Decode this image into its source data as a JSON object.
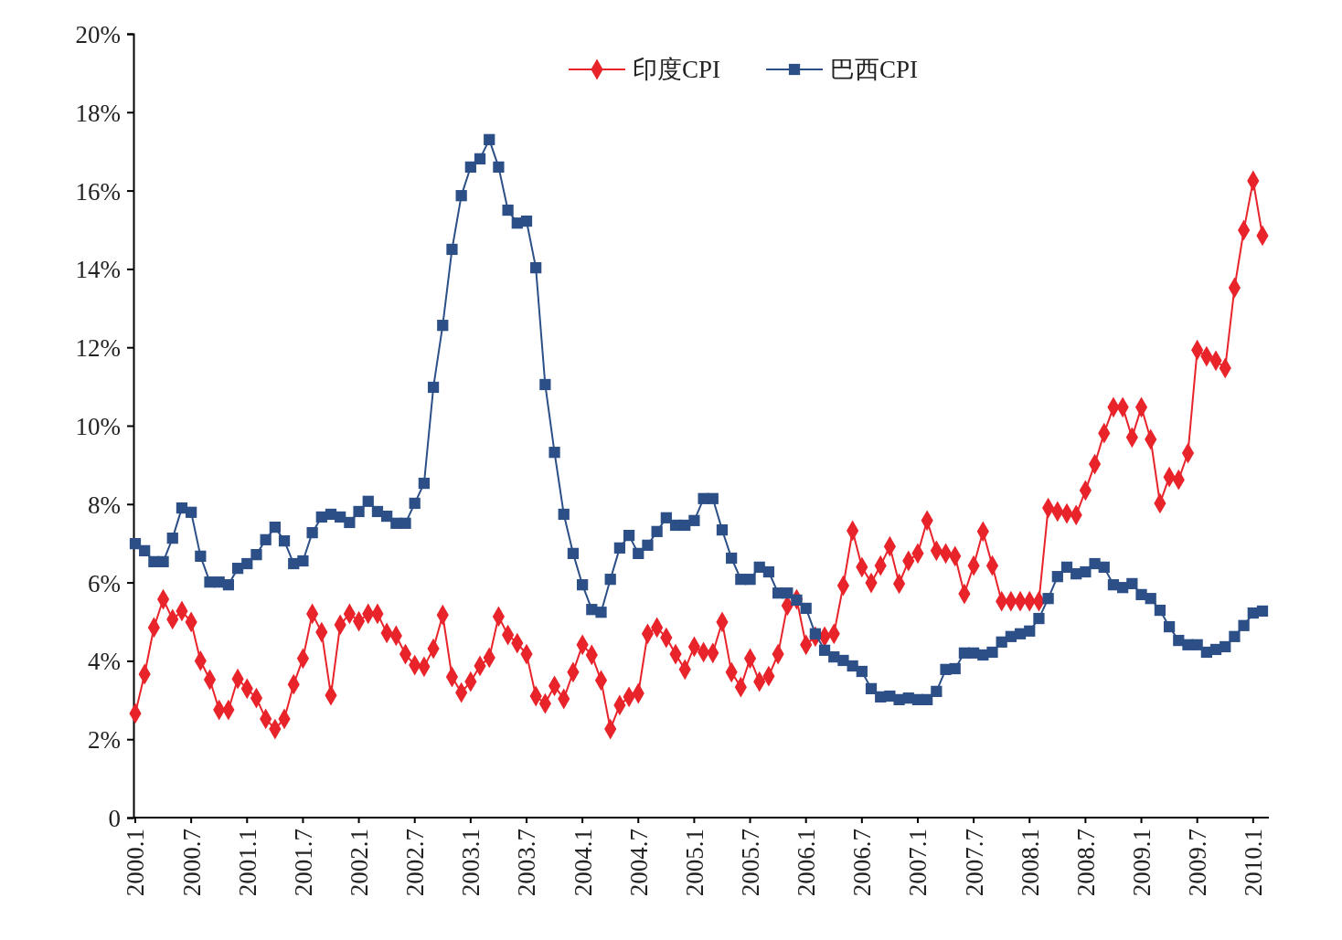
{
  "chart_data": {
    "type": "line",
    "categories": [
      "2000.1",
      null,
      null,
      null,
      null,
      null,
      "2000.7",
      null,
      null,
      null,
      null,
      null,
      "2001.1",
      null,
      null,
      null,
      null,
      null,
      "2001.7",
      null,
      null,
      null,
      null,
      null,
      "2002.1",
      null,
      null,
      null,
      null,
      null,
      "2002.7",
      null,
      null,
      null,
      null,
      null,
      "2003.1",
      null,
      null,
      null,
      null,
      null,
      "2003.7",
      null,
      null,
      null,
      null,
      null,
      "2004.1",
      null,
      null,
      null,
      null,
      null,
      "2004.7",
      null,
      null,
      null,
      null,
      null,
      "2005.1",
      null,
      null,
      null,
      null,
      null,
      "2005.7",
      null,
      null,
      null,
      null,
      null,
      "2006.1",
      null,
      null,
      null,
      null,
      null,
      "2006.7",
      null,
      null,
      null,
      null,
      null,
      "2007.1",
      null,
      null,
      null,
      null,
      null,
      "2007.7",
      null,
      null,
      null,
      null,
      null,
      "2008.1",
      null,
      null,
      null,
      null,
      null,
      "2008.7",
      null,
      null,
      null,
      null,
      null,
      "2009.1",
      null,
      null,
      null,
      null,
      null,
      "2009.7",
      null,
      null,
      null,
      null,
      null,
      "2010.1",
      null
    ],
    "series": [
      {
        "name": "印度CPI",
        "color": "#e8232a",
        "marker": "diamond",
        "values": [
          2.66,
          3.66,
          4.85,
          5.57,
          5.06,
          5.27,
          4.99,
          4.0,
          3.52,
          2.75,
          2.75,
          3.54,
          3.29,
          3.05,
          2.52,
          2.26,
          2.52,
          3.4,
          4.06,
          5.2,
          4.73,
          3.12,
          4.92,
          5.2,
          5.01,
          5.2,
          5.2,
          4.71,
          4.64,
          4.17,
          3.89,
          3.85,
          4.31,
          5.17,
          3.59,
          3.19,
          3.47,
          3.87,
          4.08,
          5.13,
          4.66,
          4.45,
          4.17,
          3.1,
          2.91,
          3.36,
          3.03,
          3.71,
          4.41,
          4.15,
          3.5,
          2.26,
          2.87,
          3.08,
          3.17,
          4.69,
          4.85,
          4.59,
          4.17,
          3.78,
          4.36,
          4.22,
          4.2,
          4.99,
          3.71,
          3.33,
          4.06,
          3.47,
          3.61,
          4.17,
          5.41,
          5.57,
          4.41,
          4.62,
          4.62,
          4.69,
          5.92,
          7.32,
          6.39,
          5.99,
          6.43,
          6.92,
          5.97,
          6.55,
          6.74,
          7.58,
          6.81,
          6.74,
          6.67,
          5.71,
          6.43,
          7.3,
          6.43,
          5.52,
          5.52,
          5.52,
          5.52,
          5.52,
          7.9,
          7.81,
          7.76,
          7.72,
          8.35,
          9.02,
          9.81,
          10.47,
          10.47,
          9.7,
          10.47,
          9.65,
          8.02,
          8.69,
          8.62,
          9.3,
          11.93,
          11.77,
          11.66,
          11.47,
          13.52,
          14.99,
          16.25,
          14.85
        ]
      },
      {
        "name": "巴西CPI",
        "color": "#2b4f86",
        "marker": "square",
        "values": [
          6.99,
          6.81,
          6.53,
          6.53,
          7.13,
          7.9,
          7.79,
          6.67,
          6.01,
          6.01,
          5.94,
          6.36,
          6.48,
          6.71,
          7.09,
          7.41,
          7.06,
          6.48,
          6.55,
          7.27,
          7.67,
          7.74,
          7.67,
          7.53,
          7.81,
          8.07,
          7.81,
          7.69,
          7.51,
          7.51,
          8.02,
          8.53,
          10.98,
          12.56,
          14.5,
          15.87,
          16.6,
          16.81,
          17.3,
          16.6,
          15.5,
          15.17,
          15.22,
          14.03,
          11.05,
          9.32,
          7.74,
          6.74,
          5.94,
          5.31,
          5.24,
          6.08,
          6.88,
          7.2,
          6.74,
          6.95,
          7.3,
          7.65,
          7.46,
          7.46,
          7.58,
          8.14,
          8.14,
          7.34,
          6.62,
          6.08,
          6.08,
          6.39,
          6.27,
          5.73,
          5.73,
          5.55,
          5.34,
          4.69,
          4.27,
          4.1,
          4.01,
          3.87,
          3.73,
          3.29,
          3.08,
          3.1,
          3.01,
          3.05,
          3.01,
          3.01,
          3.22,
          3.78,
          3.8,
          4.2,
          4.2,
          4.15,
          4.22,
          4.48,
          4.62,
          4.69,
          4.76,
          5.08,
          5.59,
          6.15,
          6.39,
          6.22,
          6.27,
          6.48,
          6.39,
          5.94,
          5.87,
          5.97,
          5.69,
          5.59,
          5.29,
          4.87,
          4.52,
          4.41,
          4.41,
          4.22,
          4.29,
          4.36,
          4.62,
          4.9,
          5.22,
          5.27
        ]
      }
    ],
    "ylim": [
      0,
      20
    ],
    "yticks": [
      0,
      {
        "value": 2,
        "label": "2%"
      },
      {
        "value": 4,
        "label": "4%"
      },
      {
        "value": 6,
        "label": "6%"
      },
      {
        "value": 8,
        "label": "8%"
      },
      {
        "value": 10,
        "label": "10%"
      },
      {
        "value": 12,
        "label": "12%"
      },
      {
        "value": 14,
        "label": "14%"
      },
      {
        "value": 16,
        "label": "16%"
      },
      {
        "value": 18,
        "label": "18%"
      },
      {
        "value": 20,
        "label": "20%"
      }
    ],
    "grid": false,
    "legend": "top",
    "line_style": "solid"
  }
}
